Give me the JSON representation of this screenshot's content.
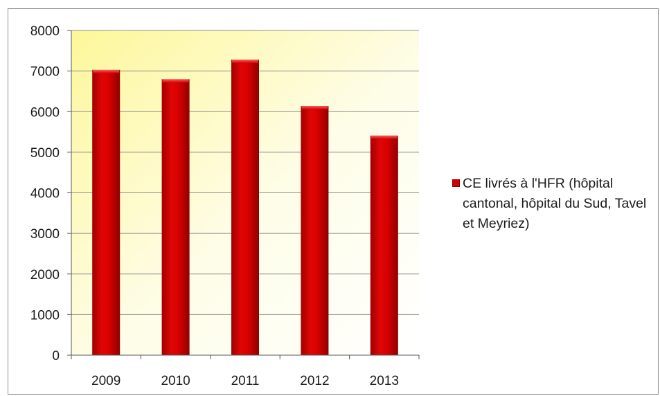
{
  "chart_data": {
    "type": "bar",
    "categories": [
      "2009",
      "2010",
      "2011",
      "2012",
      "2013"
    ],
    "series": [
      {
        "name": "CE livrés à l'HFR  (hôpital cantonal, hôpital du Sud, Tavel et Meyriez)",
        "values": [
          7030,
          6800,
          7280,
          6140,
          5410
        ]
      }
    ],
    "yticks": [
      "0",
      "1000",
      "2000",
      "3000",
      "4000",
      "5000",
      "6000",
      "7000",
      "8000"
    ],
    "ylim": [
      0,
      8000
    ],
    "title": "",
    "xlabel": "",
    "ylabel": "",
    "grid": true,
    "legend_position": "right",
    "colors": {
      "bar": "#d40000",
      "bar_dark": "#8a0000",
      "plot_bg_light": "#ffffff",
      "plot_bg_yellow": "#fdf79a",
      "grid": "#8c8c8c"
    }
  }
}
